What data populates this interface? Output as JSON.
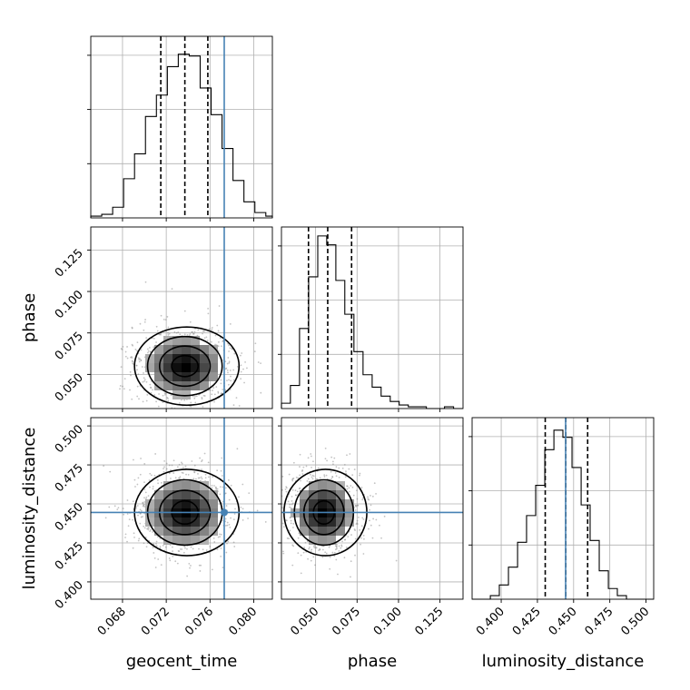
{
  "chart_data": {
    "type": "corner",
    "parameters": [
      "geocent_time",
      "phase",
      "luminosity_distance"
    ],
    "truth_color": "#4682b4",
    "truths": {
      "geocent_time": 0.0773,
      "phase": null,
      "luminosity_distance": 0.4445
    },
    "panels": [
      {
        "kind": "hist",
        "param": "geocent_time",
        "row": 0,
        "col": 0,
        "xlim": [
          0.0651,
          0.0817
        ],
        "ymax": 1.0,
        "x_ticks": [
          0.068,
          0.072,
          0.076,
          0.08
        ],
        "y_tick_count": 3,
        "bin_edges": [
          0.0651,
          0.0661,
          0.0671,
          0.0681,
          0.0691,
          0.0701,
          0.0711,
          0.0721,
          0.0731,
          0.0741,
          0.0751,
          0.0761,
          0.0771,
          0.0781,
          0.0791,
          0.0801,
          0.0811,
          0.0821
        ],
        "bin_values": [
          0.01,
          0.02,
          0.06,
          0.22,
          0.36,
          0.57,
          0.69,
          0.85,
          0.92,
          0.91,
          0.73,
          0.58,
          0.39,
          0.21,
          0.09,
          0.03,
          0.01
        ],
        "quantiles": [
          0.0715,
          0.0737,
          0.0758
        ],
        "truth": 0.0773
      },
      {
        "kind": "hist",
        "param": "phase",
        "row": 1,
        "col": 1,
        "xlim": [
          0.0294,
          0.1389
        ],
        "ymax": 1.0,
        "x_ticks": [
          0.05,
          0.075,
          0.1,
          0.125
        ],
        "y_tick_count": 3,
        "bin_edges": [
          0.0294,
          0.0348,
          0.0403,
          0.0458,
          0.0513,
          0.0567,
          0.0622,
          0.0676,
          0.0731,
          0.0786,
          0.0841,
          0.0895,
          0.095,
          0.1004,
          0.1059,
          0.1113,
          0.1168,
          0.1223,
          0.1277,
          0.1332,
          0.1389
        ],
        "bin_values": [
          0.03,
          0.13,
          0.45,
          0.74,
          0.97,
          0.92,
          0.72,
          0.53,
          0.32,
          0.19,
          0.12,
          0.07,
          0.04,
          0.02,
          0.01,
          0.01,
          0.0,
          0.0,
          0.01,
          0.0
        ],
        "quantiles": [
          0.0457,
          0.0573,
          0.0717
        ],
        "truth": null
      },
      {
        "kind": "hist",
        "param": "luminosity_distance",
        "row": 2,
        "col": 2,
        "xlim": [
          0.3799,
          0.5053
        ],
        "ymax": 1.0,
        "x_ticks": [
          0.4,
          0.425,
          0.45,
          0.475,
          0.5
        ],
        "y_tick_count": 3,
        "bin_edges": [
          0.3799,
          0.3862,
          0.3925,
          0.3987,
          0.405,
          0.4113,
          0.4175,
          0.4238,
          0.4301,
          0.4364,
          0.4426,
          0.4489,
          0.4552,
          0.4614,
          0.4677,
          0.474,
          0.4802,
          0.4865,
          0.4928,
          0.499,
          0.5053
        ],
        "bin_values": [
          0.0,
          0.0,
          0.02,
          0.08,
          0.18,
          0.32,
          0.47,
          0.64,
          0.84,
          0.95,
          0.91,
          0.74,
          0.53,
          0.33,
          0.16,
          0.06,
          0.02,
          0.0,
          0.0,
          0.0
        ],
        "quantiles": [
          0.4304,
          0.4446,
          0.4597
        ],
        "truth": 0.4445
      },
      {
        "kind": "density2d",
        "x_param": "geocent_time",
        "y_param": "phase",
        "row": 1,
        "col": 0,
        "xlim": [
          0.0651,
          0.0817
        ],
        "ylim": [
          0.0294,
          0.1389
        ],
        "x_ticks": [
          0.068,
          0.072,
          0.076,
          0.08
        ],
        "y_ticks": [
          0.05,
          0.075,
          0.1,
          0.125
        ],
        "center": [
          0.0737,
          0.055
        ],
        "sigma": [
          0.0022,
          0.0115
        ],
        "truth_x": 0.0773,
        "truth_y": null
      },
      {
        "kind": "density2d",
        "x_param": "geocent_time",
        "y_param": "luminosity_distance",
        "row": 2,
        "col": 0,
        "xlim": [
          0.0651,
          0.0817
        ],
        "ylim": [
          0.3889,
          0.5053
        ],
        "x_ticks": [
          0.068,
          0.072,
          0.076,
          0.08
        ],
        "y_ticks": [
          0.4,
          0.425,
          0.45,
          0.475,
          0.5
        ],
        "center": [
          0.0737,
          0.4445
        ],
        "sigma": [
          0.0022,
          0.0135
        ],
        "truth_x": 0.0773,
        "truth_y": 0.4445
      },
      {
        "kind": "density2d",
        "x_param": "phase",
        "y_param": "luminosity_distance",
        "row": 2,
        "col": 1,
        "xlim": [
          0.0294,
          0.1389
        ],
        "ylim": [
          0.3889,
          0.5053
        ],
        "x_ticks": [
          0.05,
          0.075,
          0.1,
          0.125
        ],
        "y_ticks": [
          0.4,
          0.425,
          0.45,
          0.475,
          0.5
        ],
        "center": [
          0.055,
          0.4445
        ],
        "sigma": [
          0.0115,
          0.0135
        ],
        "truth_x": null,
        "truth_y": 0.4445
      }
    ],
    "x_tick_labels": {
      "geocent_time": [
        "0.068",
        "0.072",
        "0.076",
        "0.080"
      ],
      "phase": [
        "0.050",
        "0.075",
        "0.100",
        "0.125"
      ],
      "luminosity_distance": [
        "0.400",
        "0.425",
        "0.450",
        "0.475",
        "0.500"
      ]
    },
    "y_tick_labels": {
      "phase": [
        "0.050",
        "0.075",
        "0.100",
        "0.125"
      ],
      "luminosity_distance": [
        "0.400",
        "0.425",
        "0.450",
        "0.475",
        "0.500"
      ]
    },
    "axis_labels": {
      "x": [
        "geocent_time",
        "phase",
        "luminosity_distance"
      ],
      "y": [
        "phase",
        "luminosity_distance"
      ]
    },
    "grid": true
  }
}
